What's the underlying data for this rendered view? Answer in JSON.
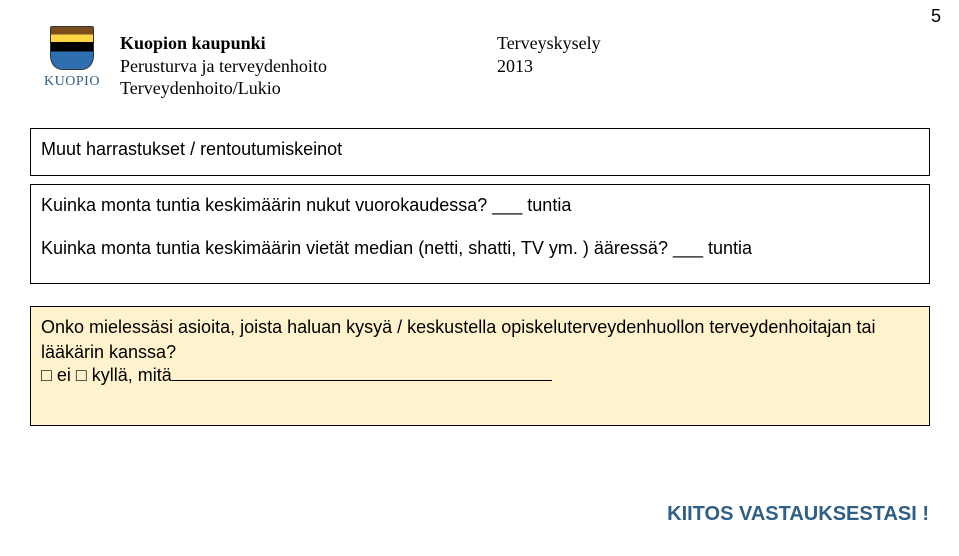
{
  "page_number": "5",
  "logo": {
    "text": "KUOPIO",
    "colors": {
      "stripe1": "#7a4f1c",
      "stripe2": "#ffd746",
      "stripe3": "#000000",
      "stripe4": "#2f6fb0",
      "text_color": "#315f84"
    }
  },
  "org": {
    "line1": "Kuopion kaupunki",
    "line2": "Perusturva ja terveydenhoito",
    "line3": "Terveydenhoito/Lukio"
  },
  "survey": {
    "title": "Terveyskysely",
    "year": "2013"
  },
  "box1": {
    "text": "Muut harrastukset / rentoutumiskeinot"
  },
  "box2": {
    "line1": "Kuinka monta tuntia keskimäärin nukut vuorokaudessa? ___ tuntia",
    "line2": "Kuinka monta tuntia keskimäärin vietät median (netti, shatti, TV ym. ) ääressä? ___ tuntia"
  },
  "box3": {
    "line1": "Onko mielessäsi asioita, joista haluan kysyä / keskustella opiskeluterveydenhuollon terveydenhoitajan tai",
    "line2": "lääkärin kanssa?",
    "line3_prefix": "□ ei  □ kyllä, mitä"
  },
  "thanks": "KIITOS VASTAUKSESTASI !",
  "colors": {
    "highlight_bg": "#fff2cc",
    "page_bg": "#ffffff",
    "text": "#000000",
    "accent": "#315f84"
  }
}
